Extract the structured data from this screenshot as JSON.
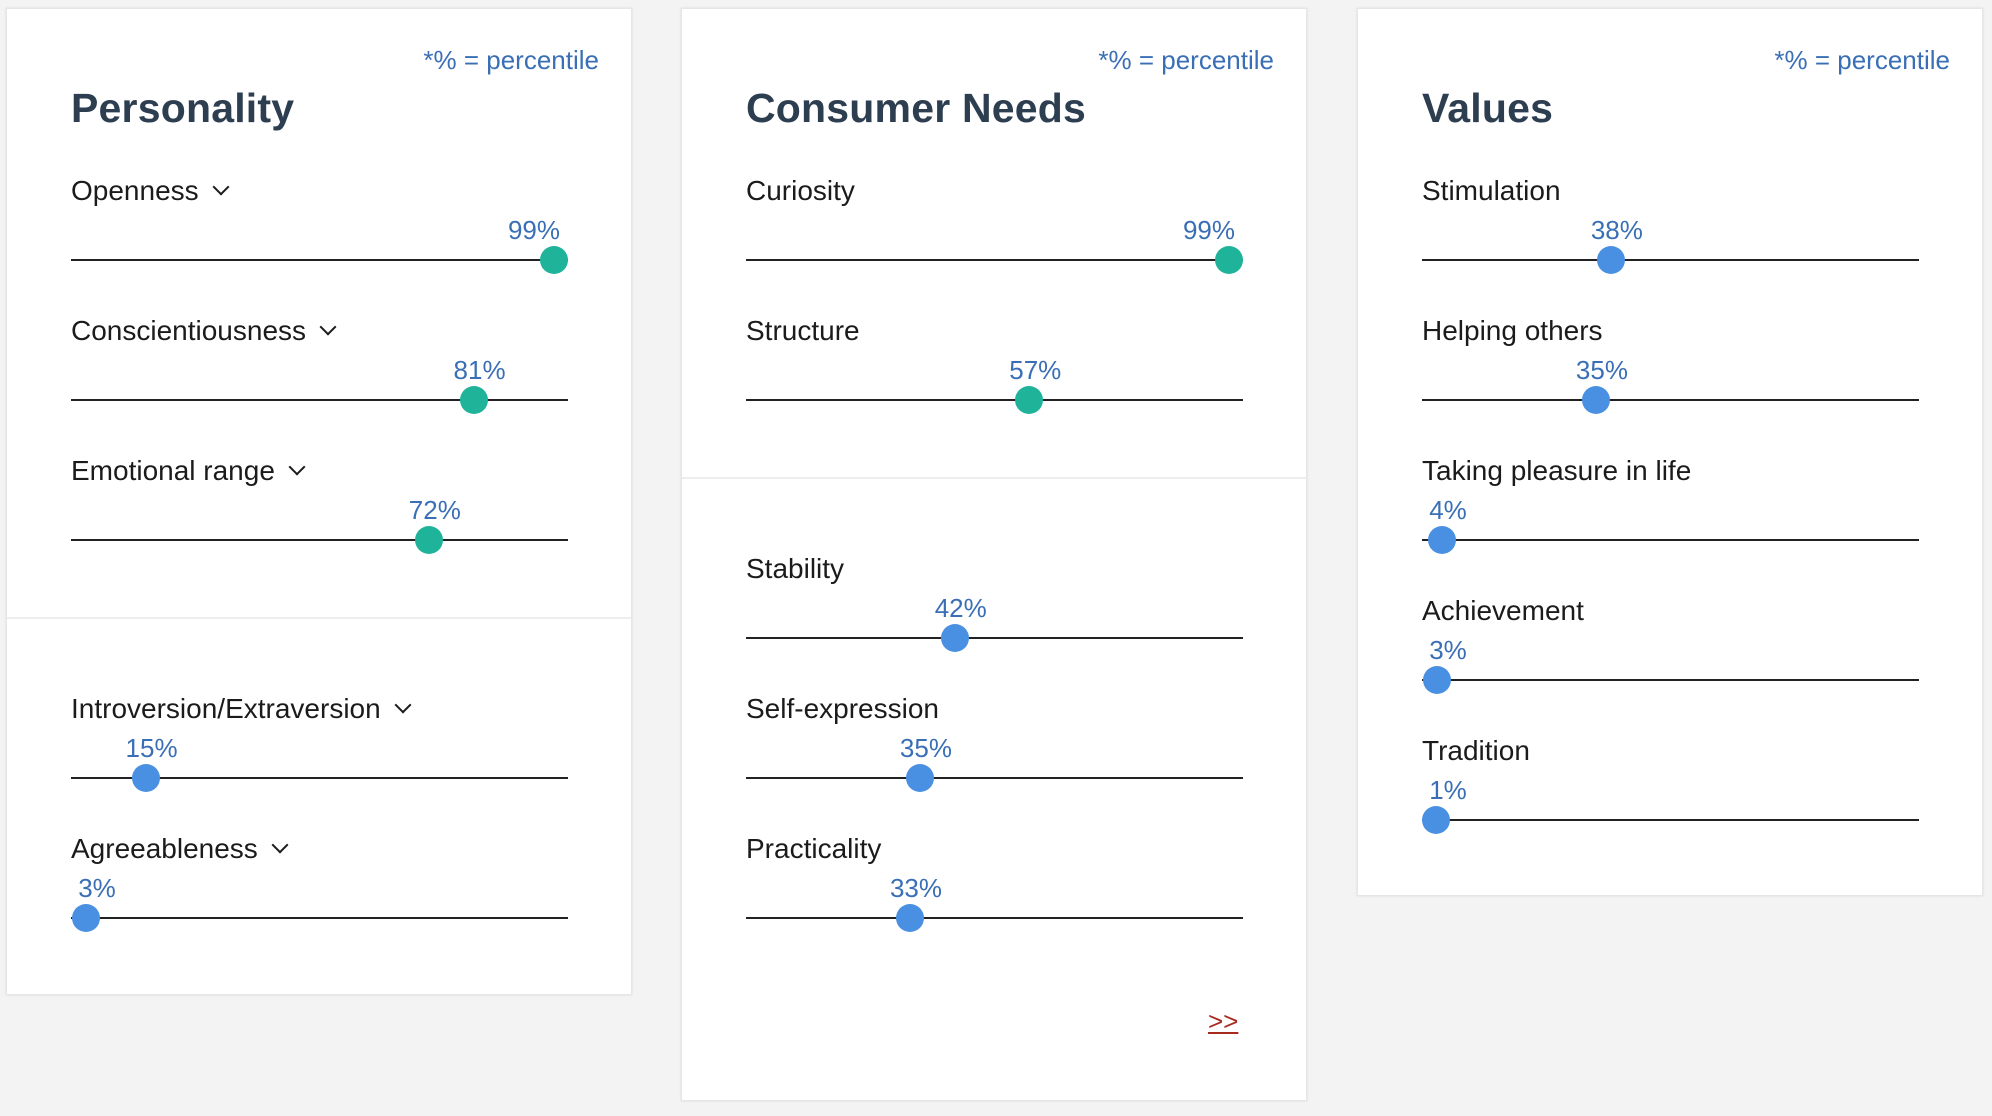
{
  "percentile_note": "*% = percentile",
  "accent_colors": {
    "high": "#1fb39a",
    "low": "#4a90e2",
    "percent_text": "#3a6fb5",
    "link": "#a8291e"
  },
  "personality": {
    "title": "Personality",
    "traits": [
      {
        "label": "Openness",
        "percent_label": "99%",
        "percentile": 99,
        "expandable": true
      },
      {
        "label": "Conscientiousness",
        "percent_label": "81%",
        "percentile": 81,
        "expandable": true
      },
      {
        "label": "Emotional range",
        "percent_label": "72%",
        "percentile": 72,
        "expandable": true
      },
      {
        "label": "Introversion/Extraversion",
        "percent_label": "15%",
        "percentile": 15,
        "expandable": true
      },
      {
        "label": "Agreeableness",
        "percent_label": "3%",
        "percentile": 3,
        "expandable": true
      }
    ]
  },
  "consumer_needs": {
    "title": "Consumer Needs",
    "traits": [
      {
        "label": "Curiosity",
        "percent_label": "99%",
        "percentile": 99
      },
      {
        "label": "Structure",
        "percent_label": "57%",
        "percentile": 57
      },
      {
        "label": "Stability",
        "percent_label": "42%",
        "percentile": 42
      },
      {
        "label": "Self-expression",
        "percent_label": "35%",
        "percentile": 35
      },
      {
        "label": "Practicality",
        "percent_label": "33%",
        "percentile": 33
      }
    ],
    "more_link": ">>"
  },
  "values": {
    "title": "Values",
    "traits": [
      {
        "label": "Stimulation",
        "percent_label": "38%",
        "percentile": 38
      },
      {
        "label": "Helping others",
        "percent_label": "35%",
        "percentile": 35
      },
      {
        "label": "Taking pleasure in life",
        "percent_label": "4%",
        "percentile": 4
      },
      {
        "label": "Achievement",
        "percent_label": "3%",
        "percentile": 3
      },
      {
        "label": "Tradition",
        "percent_label": "1%",
        "percentile": 1
      }
    ]
  }
}
